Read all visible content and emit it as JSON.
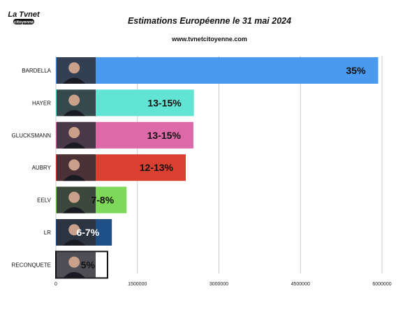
{
  "logo": {
    "line1": "La Tvnet",
    "line2": "citoyenne"
  },
  "header": {
    "title": "Estimations Européenne le 31 mai 2024",
    "subtitle": "www.tvnetcitoyenne.com"
  },
  "chart_data": {
    "type": "bar",
    "orientation": "horizontal",
    "title": "Estimations Européenne le 31 mai 2024",
    "xlabel": "",
    "ylabel": "",
    "xlim": [
      0,
      6000000
    ],
    "xticks": [
      0,
      1500000,
      3000000,
      4500000,
      6000000
    ],
    "xtick_labels": [
      "0",
      "1500000",
      "3000000",
      "4500000",
      "6000000"
    ],
    "grid": true,
    "categories": [
      "BARDELLA",
      "HAYER",
      "GLUCKSMANN",
      "AUBRY",
      "EELV",
      "LR",
      "RECONQUETE"
    ],
    "values": [
      5930000,
      2540000,
      2530000,
      2390000,
      1300000,
      1030000,
      950000
    ],
    "data_labels": [
      "35%",
      "13-15%",
      "13-15%",
      "12-13%",
      "7-8%",
      "6-7%",
      "5%"
    ],
    "colors": [
      "#4a9af0",
      "#62e4d4",
      "#dc6aa9",
      "#d94030",
      "#7ed85a",
      "#1e4f86",
      "#ffffff"
    ],
    "label_colors": [
      "#111111",
      "#111111",
      "#111111",
      "#111111",
      "#111111",
      "#ffffff",
      "#111111"
    ],
    "edge_colors": [
      "none",
      "none",
      "none",
      "none",
      "none",
      "none",
      "#111111"
    ]
  }
}
